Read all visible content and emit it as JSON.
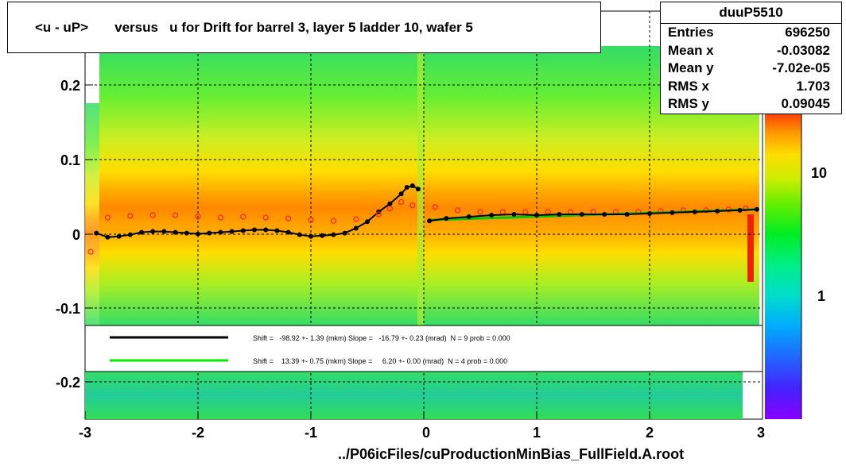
{
  "title": "<u - uP>       versus   u for Drift for barrel 3, layer 5 ladder 10, wafer 5",
  "stats": {
    "name": "duuP5510",
    "rows": [
      {
        "label": "Entries",
        "value": "696250"
      },
      {
        "label": "Mean x",
        "value": "-0.03082"
      },
      {
        "label": "Mean y",
        "value": "-7.02e-05"
      },
      {
        "label": "RMS x",
        "value": "1.703"
      },
      {
        "label": "RMS y",
        "value": "0.09045"
      }
    ]
  },
  "footer": "../P06icFiles/cuProductionMinBias_FullField.A.root",
  "legend": [
    {
      "text": "Shift =   -98.92 +- 1.39 (mkm) Slope =   -16.79 +- 0.23 (mrad)  N = 9 prob = 0.000",
      "color": "#000000"
    },
    {
      "text": "Shift =    13.39 +- 0.75 (mkm) Slope =     6.20 +- 0.00 (mrad)  N = 4 prob = 0.000",
      "color": "#00ff00"
    }
  ],
  "colorbar": {
    "labels": [
      "10",
      "1"
    ],
    "exponent": "2"
  },
  "chart_data": {
    "type": "heatmap",
    "title": "<u - uP>       versus   u for Drift for barrel 3, layer 5 ladder 10, wafer 5",
    "xlim": [
      -3,
      3
    ],
    "ylim": [
      -0.25,
      0.25
    ],
    "x_ticks": [
      "-3",
      "-2",
      "-1",
      "0",
      "1",
      "2",
      "3"
    ],
    "y_ticks": [
      "0.2",
      "0.1",
      "0",
      "-0.1",
      "-0.2"
    ],
    "y_tick_values": [
      0.2,
      0.1,
      0,
      -0.1,
      -0.2
    ],
    "grid": true,
    "series": [
      {
        "marker": "black-filled",
        "x": [
          -2.9,
          -2.8,
          -2.7,
          -2.6,
          -2.5,
          -2.4,
          -2.3,
          -2.2,
          -2.1,
          -2.0,
          -1.9,
          -1.8,
          -1.7,
          -1.6,
          -1.5,
          -1.4,
          -1.3,
          -1.2,
          -1.1,
          -1.0,
          -0.9,
          -0.8,
          -0.7,
          -0.6,
          -0.5,
          -0.4,
          -0.3,
          -0.2,
          -0.15,
          -0.1,
          -0.05
        ],
        "y": [
          -0.022,
          -0.027,
          -0.026,
          -0.024,
          -0.021,
          -0.02,
          -0.02,
          -0.021,
          -0.022,
          -0.023,
          -0.022,
          -0.021,
          -0.02,
          -0.019,
          -0.018,
          -0.018,
          -0.019,
          -0.021,
          -0.024,
          -0.026,
          -0.025,
          -0.024,
          -0.022,
          -0.016,
          -0.008,
          0.004,
          0.014,
          0.026,
          0.034,
          0.036,
          0.032
        ]
      },
      {
        "marker": "red-open",
        "x": [
          -2.95,
          -2.8,
          -2.6,
          -2.4,
          -2.2,
          -2.0,
          -1.8,
          -1.6,
          -1.4,
          -1.2,
          -1.0,
          -0.8,
          -0.6,
          -0.4,
          -0.3,
          -0.2,
          -0.1,
          0.1,
          0.3,
          0.5,
          0.7,
          0.9,
          1.1,
          1.3,
          1.5,
          1.7,
          1.9,
          2.1,
          2.3,
          2.5,
          2.7,
          2.85
        ],
        "y": [
          -0.045,
          -0.003,
          -0.001,
          0.0,
          0.0,
          -0.002,
          -0.003,
          -0.002,
          -0.003,
          -0.004,
          -0.006,
          -0.007,
          -0.005,
          0.001,
          0.008,
          0.016,
          0.012,
          0.01,
          0.006,
          0.004,
          0.004,
          0.004,
          0.004,
          0.004,
          0.004,
          0.004,
          0.004,
          0.005,
          0.006,
          0.006,
          0.007,
          0.008
        ]
      },
      {
        "marker": "black-filled",
        "x": [
          0.05,
          0.2,
          0.4,
          0.6,
          0.8,
          1.0,
          1.2,
          1.4,
          1.6,
          1.8,
          2.0,
          2.2,
          2.4,
          2.6,
          2.8,
          2.95
        ],
        "y": [
          -0.007,
          -0.004,
          -0.002,
          0.0,
          0.001,
          0.0,
          0.001,
          0.001,
          0.001,
          0.001,
          0.002,
          0.003,
          0.004,
          0.005,
          0.006,
          0.007
        ]
      }
    ],
    "fits": [
      {
        "color": "#00c800",
        "x": [
          0.05,
          2.95
        ],
        "y": [
          -0.006,
          0.007
        ]
      }
    ]
  }
}
